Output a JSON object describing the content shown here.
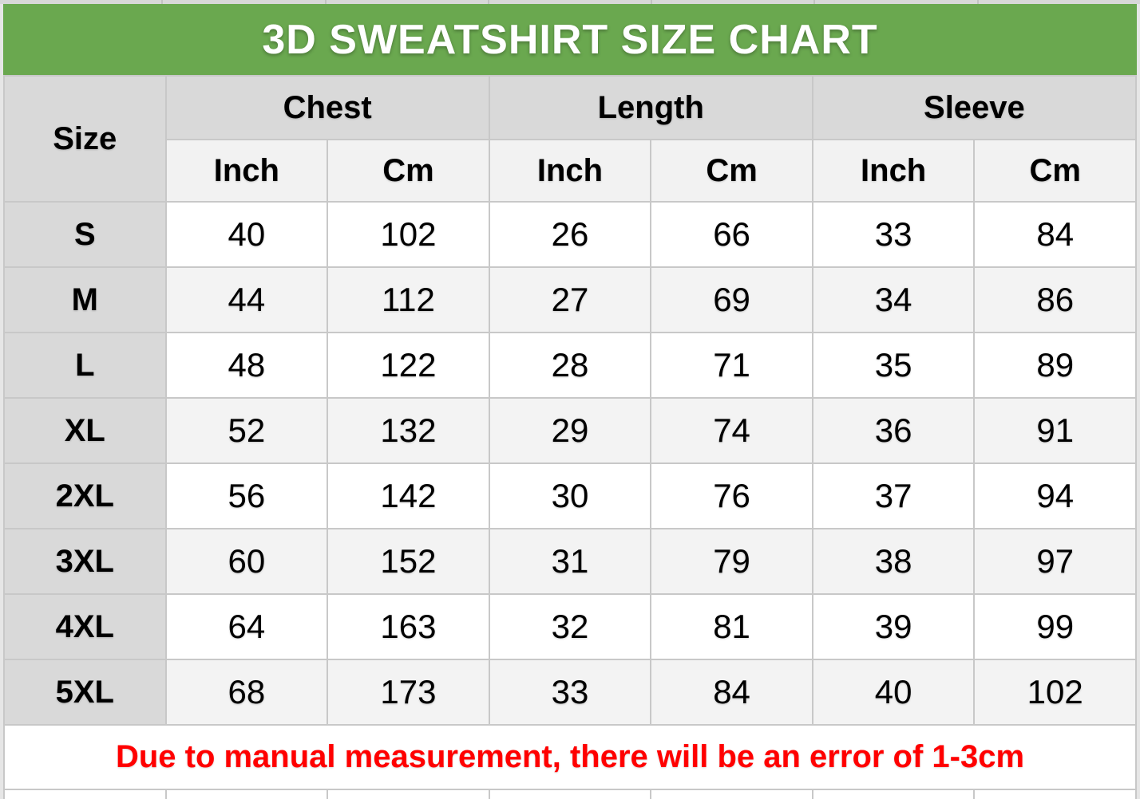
{
  "title": "3D SWEATSHIRT SIZE CHART",
  "table": {
    "size_header": "Size",
    "group_headers": {
      "chest": "Chest",
      "length": "Length",
      "sleeve": "Sleeve"
    },
    "unit_headers": [
      "Inch",
      "Cm",
      "Inch",
      "Cm",
      "Inch",
      "Cm"
    ],
    "rows": [
      {
        "size": "S",
        "values": [
          "40",
          "102",
          "26",
          "66",
          "33",
          "84"
        ]
      },
      {
        "size": "M",
        "values": [
          "44",
          "112",
          "27",
          "69",
          "34",
          "86"
        ]
      },
      {
        "size": "L",
        "values": [
          "48",
          "122",
          "28",
          "71",
          "35",
          "89"
        ]
      },
      {
        "size": "XL",
        "values": [
          "52",
          "132",
          "29",
          "74",
          "36",
          "91"
        ]
      },
      {
        "size": "2XL",
        "values": [
          "56",
          "142",
          "30",
          "76",
          "37",
          "94"
        ]
      },
      {
        "size": "3XL",
        "values": [
          "60",
          "152",
          "31",
          "79",
          "38",
          "97"
        ]
      },
      {
        "size": "4XL",
        "values": [
          "64",
          "163",
          "32",
          "81",
          "39",
          "99"
        ]
      },
      {
        "size": "5XL",
        "values": [
          "68",
          "173",
          "33",
          "84",
          "40",
          "102"
        ]
      }
    ],
    "note": "Due to manual measurement, there will be an error of 1-3cm"
  },
  "colors": {
    "title_bar_green": "#6aa84f",
    "header_gray": "#d9d9d9",
    "subheader_gray": "#f2f2f2",
    "row_alt_gray": "#f3f3f3",
    "note_red": "#ff0000",
    "grid_line": "#c8c8c8"
  },
  "chart_data": {
    "type": "table",
    "title": "3D SWEATSHIRT SIZE CHART",
    "columns": [
      "Size",
      "Chest Inch",
      "Chest Cm",
      "Length Inch",
      "Length Cm",
      "Sleeve Inch",
      "Sleeve Cm"
    ],
    "rows": [
      [
        "S",
        40,
        102,
        26,
        66,
        33,
        84
      ],
      [
        "M",
        44,
        112,
        27,
        69,
        34,
        86
      ],
      [
        "L",
        48,
        122,
        28,
        71,
        35,
        89
      ],
      [
        "XL",
        52,
        132,
        29,
        74,
        36,
        91
      ],
      [
        "2XL",
        56,
        142,
        30,
        76,
        37,
        94
      ],
      [
        "3XL",
        60,
        152,
        31,
        79,
        38,
        97
      ],
      [
        "4XL",
        64,
        163,
        32,
        81,
        39,
        99
      ],
      [
        "5XL",
        68,
        173,
        33,
        84,
        40,
        102
      ]
    ],
    "note": "Due to manual measurement, there will be an error of 1-3cm",
    "layout": {
      "grid": true,
      "header_rows": 2,
      "alternating_row_shading": true
    }
  }
}
